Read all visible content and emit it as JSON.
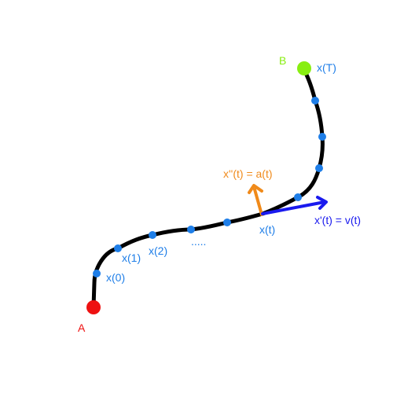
{
  "labels": {
    "start": "A",
    "end": "B",
    "points": [
      "x(0)",
      "x(1)",
      "x(2)",
      "....."
    ],
    "current": "x(t)",
    "final": "x(T)",
    "velocity": "x'(t) = v(t)",
    "acceleration": "x''(t) = a(t)"
  },
  "colors": {
    "curve": "#000000",
    "sample_point": "#1e7ee8",
    "label_blue": "#1e7ee8",
    "start_point": "#ee1111",
    "end_point": "#88ee11",
    "velocity": "#1a1aee",
    "acceleration": "#f08a1a"
  }
}
